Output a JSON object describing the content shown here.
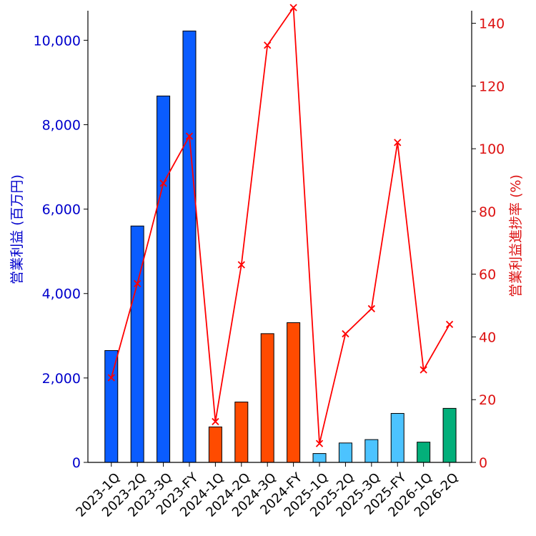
{
  "chart_data": {
    "type": "bar+line",
    "categories": [
      "2023-1Q",
      "2023-2Q",
      "2023-3Q",
      "2023-FY",
      "2024-1Q",
      "2024-2Q",
      "2024-3Q",
      "2024-FY",
      "2025-1Q",
      "2025-2Q",
      "2025-3Q",
      "2025-FY",
      "2026-1Q",
      "2026-2Q"
    ],
    "bar_series": {
      "name": "営業利益 (百万円)",
      "values": [
        2650,
        5600,
        8680,
        10220,
        840,
        1430,
        3050,
        3310,
        210,
        460,
        540,
        1160,
        480,
        1280
      ],
      "colors": [
        "#0a5cff",
        "#0a5cff",
        "#0a5cff",
        "#0a5cff",
        "#ff4b00",
        "#ff4b00",
        "#ff4b00",
        "#ff4b00",
        "#4cc3ff",
        "#4cc3ff",
        "#4cc3ff",
        "#4cc3ff",
        "#03af7a",
        "#03af7a"
      ]
    },
    "line_series": {
      "name": "営業利益進捗率 (%)",
      "values": [
        27,
        57,
        89,
        104,
        13,
        63,
        133,
        145,
        6,
        41,
        49,
        102,
        29.5,
        44
      ],
      "color": "#ff0000",
      "marker": "x"
    },
    "left_axis": {
      "label": "営業利益 (百万円)",
      "ylim": [
        0,
        10700
      ],
      "ticks": [
        0,
        2000,
        4000,
        6000,
        8000,
        10000
      ],
      "tick_labels": [
        "0",
        "2,000",
        "4,000",
        "6,000",
        "8,000",
        "10,000"
      ],
      "color": "#0000cc"
    },
    "right_axis": {
      "label": "営業利益進捗率 (%)",
      "ylim": [
        0,
        144
      ],
      "ticks": [
        0,
        20,
        40,
        60,
        80,
        100,
        120,
        140
      ],
      "tick_labels": [
        "0",
        "20",
        "40",
        "60",
        "80",
        "100",
        "120",
        "140"
      ],
      "color": "#dd1111"
    },
    "grid": false,
    "legend": "none"
  }
}
